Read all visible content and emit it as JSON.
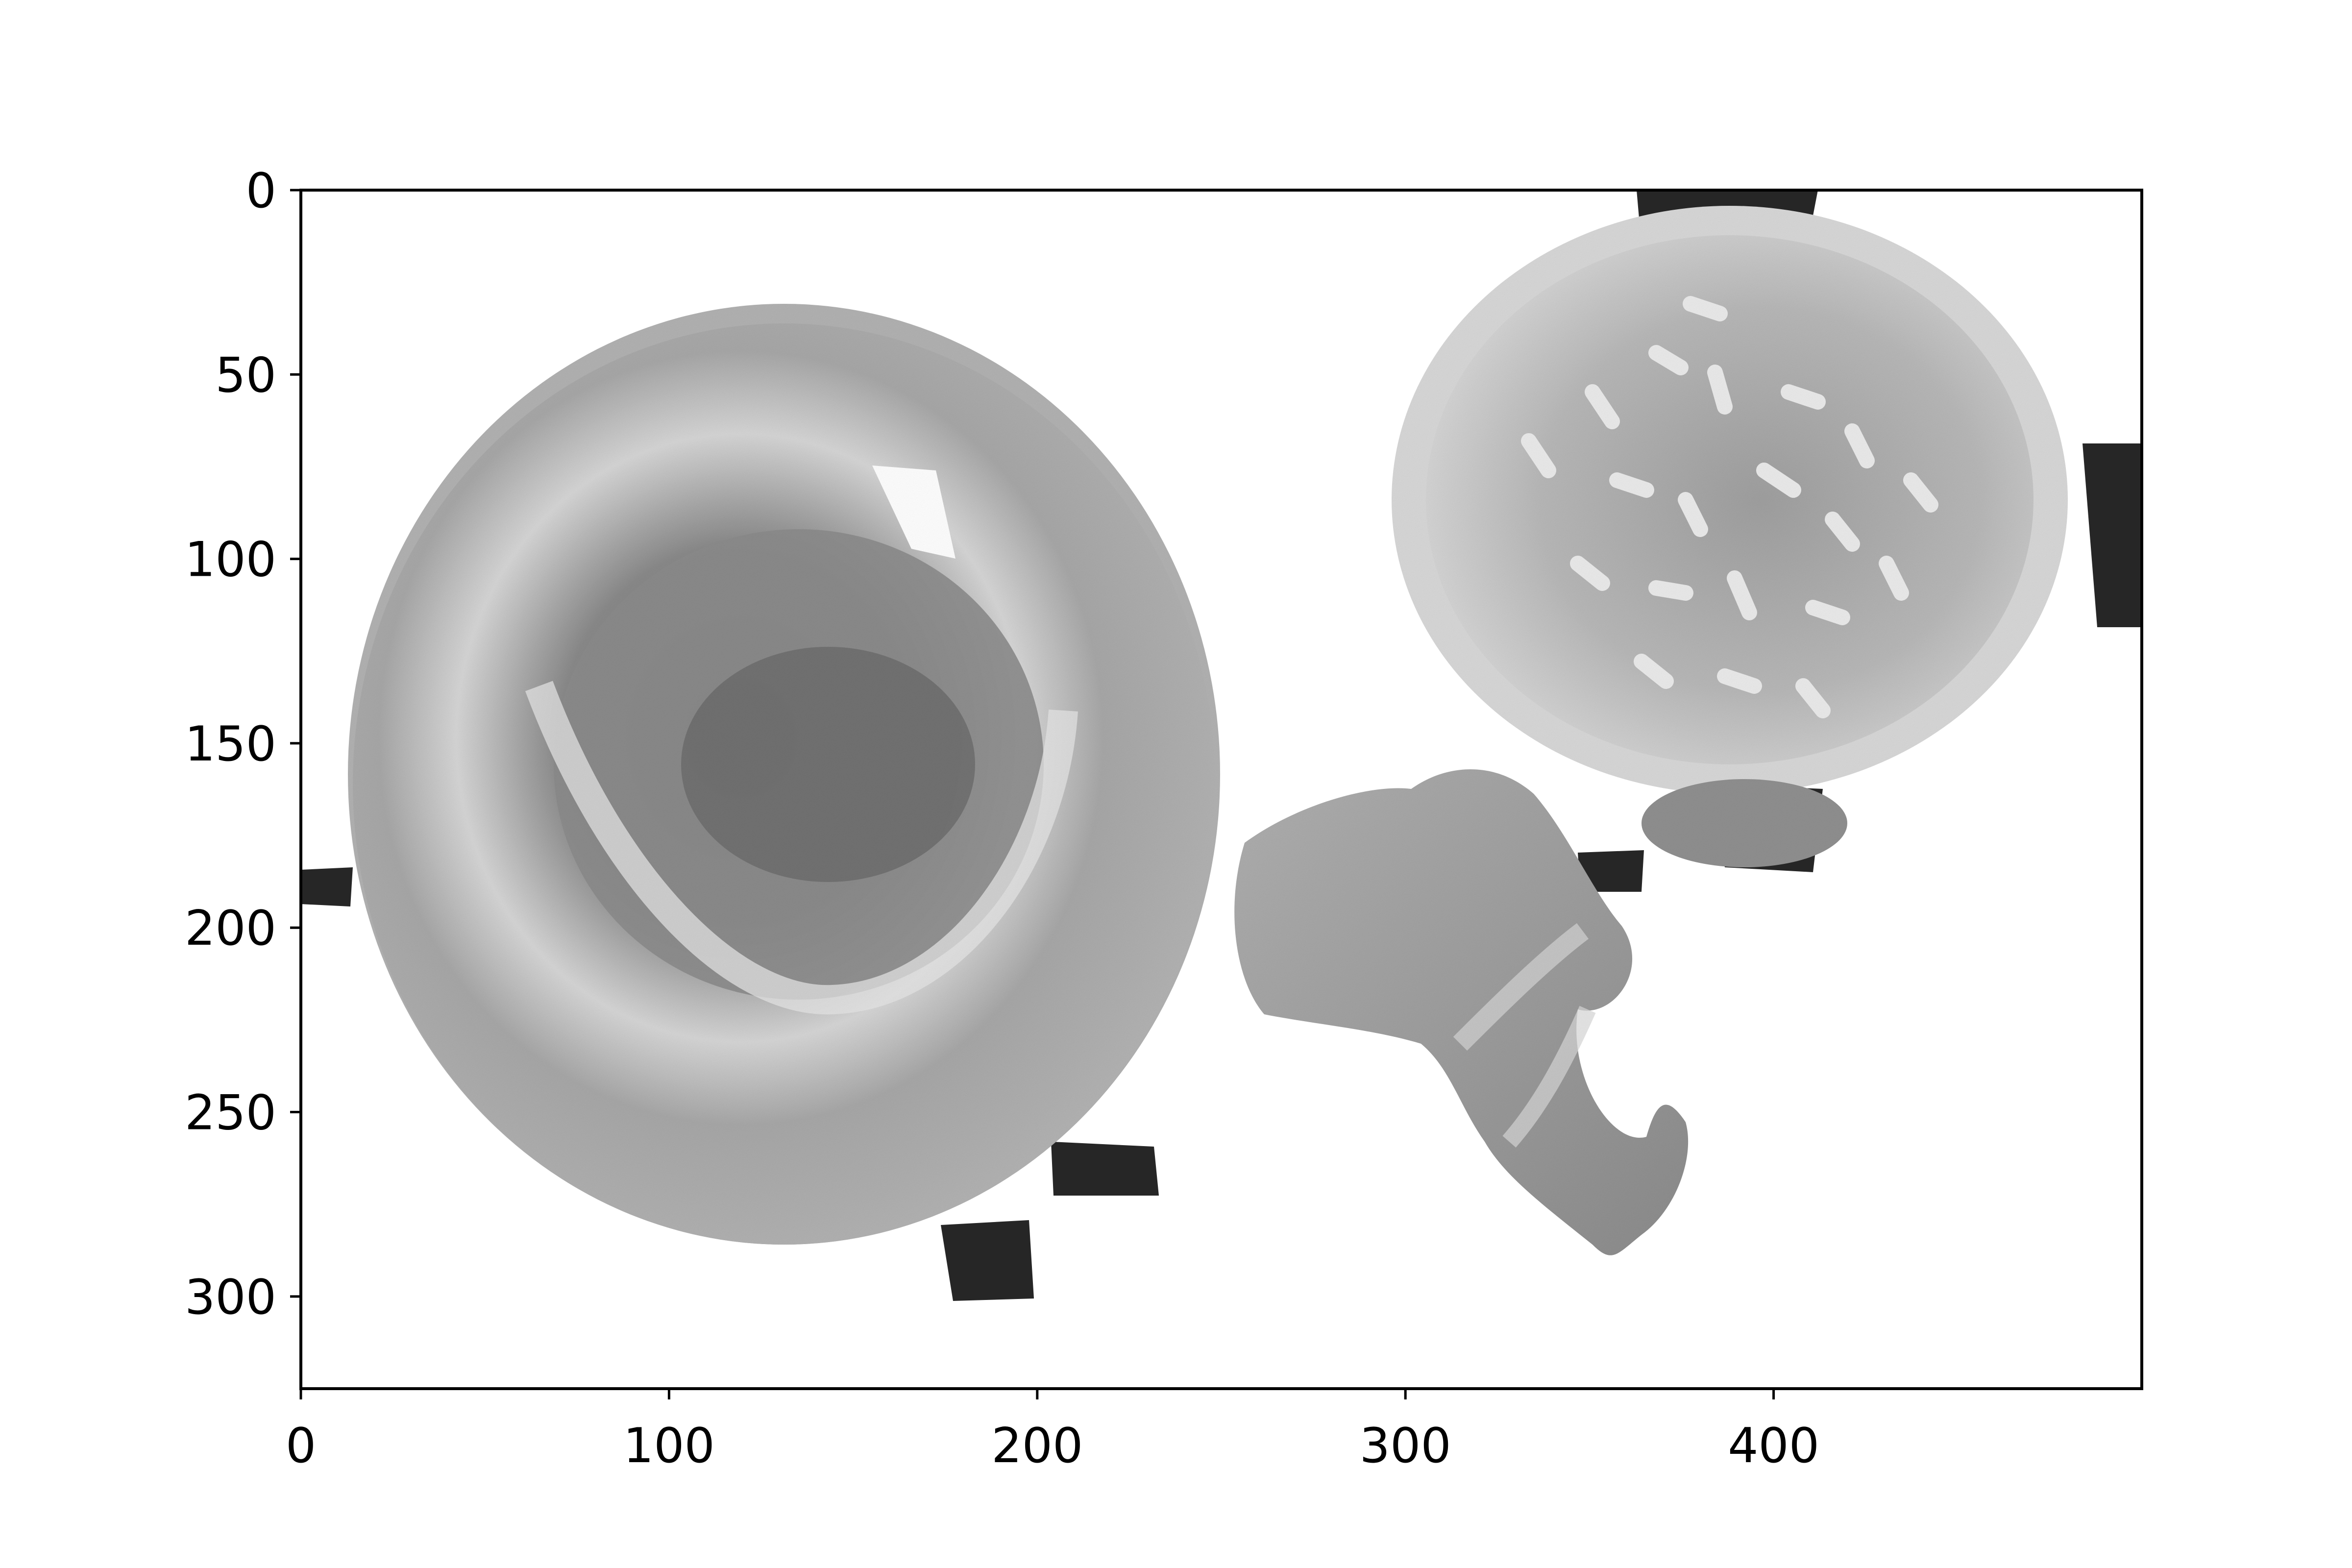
{
  "image": {
    "type": "grayscale scanning electron micrograph",
    "description_subjects": [
      "red blood cell",
      "white blood cell",
      "platelet"
    ],
    "extent": {
      "x": [
        0,
        500
      ],
      "y": [
        0,
        325
      ]
    },
    "y_axis_inverted": true
  },
  "axes": {
    "x_ticks": [
      {
        "value": 0,
        "label": "0"
      },
      {
        "value": 100,
        "label": "100"
      },
      {
        "value": 200,
        "label": "200"
      },
      {
        "value": 300,
        "label": "300"
      },
      {
        "value": 400,
        "label": "400"
      }
    ],
    "y_ticks": [
      {
        "value": 0,
        "label": "0"
      },
      {
        "value": 50,
        "label": "50"
      },
      {
        "value": 100,
        "label": "100"
      },
      {
        "value": 150,
        "label": "150"
      },
      {
        "value": 200,
        "label": "200"
      },
      {
        "value": 250,
        "label": "250"
      },
      {
        "value": 300,
        "label": "300"
      }
    ]
  },
  "colors": {
    "background": "#ffffff",
    "frame": "#000000",
    "rbc_fill": "#a5a5a5",
    "wbc_fill": "#c8c8c8",
    "platelet_fill": "#a8a8a8",
    "dark_patches": "#262626"
  }
}
